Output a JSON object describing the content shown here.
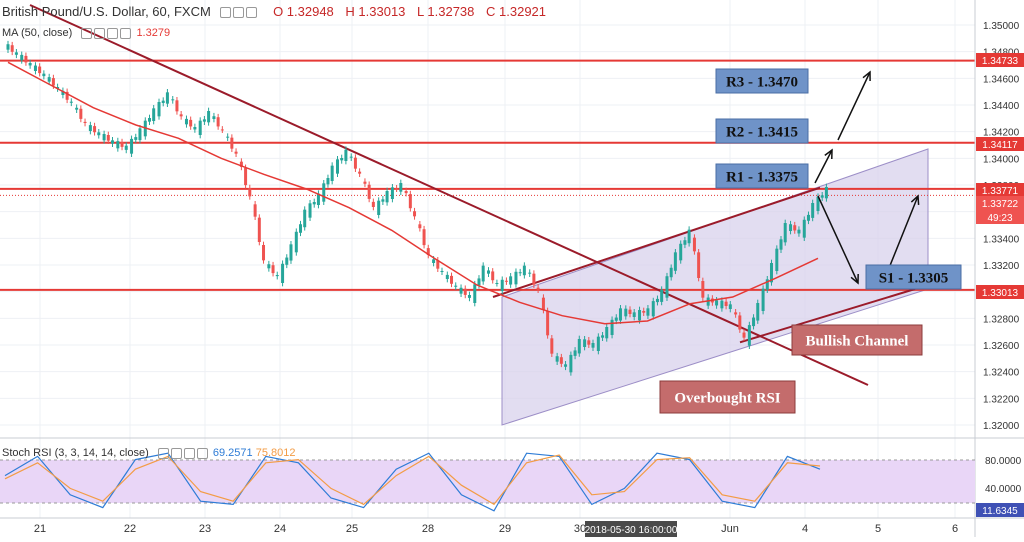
{
  "header": {
    "symbol": "British Pound/U.S. Dollar, 60, FXCM",
    "open": "O 1.32948",
    "high": "H 1.33013",
    "low": "L 1.32738",
    "close": "C 1.32921"
  },
  "ma_label": {
    "text": "MA (50, close)",
    "value": "1.3279"
  },
  "rsi_label": {
    "text": "Stoch RSI (3, 3, 14, 14, close)",
    "k": "69.2571",
    "d": "75.8012"
  },
  "price_axis": {
    "ticks": [
      "1.35000",
      "1.34800",
      "1.34600",
      "1.34400",
      "1.34200",
      "1.34000",
      "1.33800",
      "1.33600",
      "1.33400",
      "1.33200",
      "1.33000",
      "1.32800",
      "1.32600",
      "1.32400",
      "1.32200",
      "1.32000"
    ],
    "markers": [
      {
        "text": "1.34733",
        "color": "#e53935"
      },
      {
        "text": "1.34117",
        "color": "#e53935"
      },
      {
        "text": "1.33771",
        "color": "#e53935"
      },
      {
        "text": "1.33722",
        "color": "#ef5350"
      },
      {
        "text": "49:23",
        "color": "#ef5350"
      },
      {
        "text": "1.33013",
        "color": "#e53935"
      }
    ]
  },
  "rsi_axis": {
    "ticks": [
      "80.0000",
      "40.0000"
    ],
    "marker": "11.6345"
  },
  "time_axis": {
    "ticks": [
      "21",
      "22",
      "23",
      "24",
      "25",
      "28",
      "29",
      "30",
      "Jun",
      "4",
      "5",
      "6"
    ],
    "cursor_label": "2018-05-30 16:00:00"
  },
  "annotations": {
    "r3": "R3 - 1.3470",
    "r2": "R2 - 1.3415",
    "r1": "R1 - 1.3375",
    "s1": "S1 - 1.3305",
    "bullish_channel": "Bullish Channel",
    "overbought_rsi": "Overbought RSI"
  },
  "colors": {
    "bull": "#26a69a",
    "bear": "#ef5350",
    "level_line": "#e53935",
    "trend_line": "#9b1b2a",
    "ma": "#e53935",
    "channel_fill": "#d8d2ec",
    "label_box_blue": "#6f93c8",
    "label_box_red": "#c46c6c",
    "rsi_fill": "#e9d6f7",
    "rsi_k": "#2e7cd6",
    "rsi_d": "#f39c45"
  },
  "chart_data": {
    "type": "candlestick",
    "title": "British Pound/U.S. Dollar, 60, FXCM",
    "ylim": [
      1.3192,
      1.351
    ],
    "grid": true,
    "horizontal_levels": [
      1.34733,
      1.34117,
      1.33771,
      1.33013
    ],
    "series": [
      {
        "name": "GBP/USD hourly close",
        "values": [
          1.3478,
          1.347,
          1.3462,
          1.3452,
          1.3441,
          1.3425,
          1.3418,
          1.3412,
          1.3408,
          1.3421,
          1.3436,
          1.3448,
          1.343,
          1.3422,
          1.3434,
          1.342,
          1.3402,
          1.337,
          1.3322,
          1.3311,
          1.3334,
          1.336,
          1.3372,
          1.3393,
          1.3405,
          1.3387,
          1.3362,
          1.3374,
          1.338,
          1.3355,
          1.3326,
          1.3314,
          1.3303,
          1.3296,
          1.3318,
          1.3305,
          1.331,
          1.3318,
          1.33,
          1.3252,
          1.3244,
          1.3263,
          1.326,
          1.3272,
          1.3286,
          1.3283,
          1.3286,
          1.33,
          1.3328,
          1.3345,
          1.3294,
          1.3292,
          1.3289,
          1.3264,
          1.329,
          1.332,
          1.335,
          1.3345,
          1.3365,
          1.3377
        ]
      },
      {
        "name": "MA (50, close)",
        "values": [
          1.3472,
          1.3455,
          1.3438,
          1.3425,
          1.3415,
          1.34,
          1.3388,
          1.3377,
          1.3363,
          1.3346,
          1.3325,
          1.3305,
          1.3292,
          1.3282,
          1.3276,
          1.3278,
          1.3291,
          1.3296,
          1.331,
          1.3325
        ]
      },
      {
        "name": "Stoch RSI %K",
        "values": [
          60,
          90,
          30,
          10,
          85,
          95,
          20,
          15,
          90,
          80,
          25,
          10,
          70,
          95,
          30,
          5,
          95,
          90,
          15,
          40,
          95,
          85,
          20,
          10,
          90,
          70
        ]
      },
      {
        "name": "Stoch RSI %D",
        "values": [
          55,
          80,
          40,
          20,
          70,
          90,
          35,
          20,
          80,
          85,
          40,
          15,
          60,
          90,
          45,
          15,
          80,
          92,
          30,
          35,
          85,
          88,
          30,
          20,
          80,
          75
        ]
      }
    ]
  }
}
